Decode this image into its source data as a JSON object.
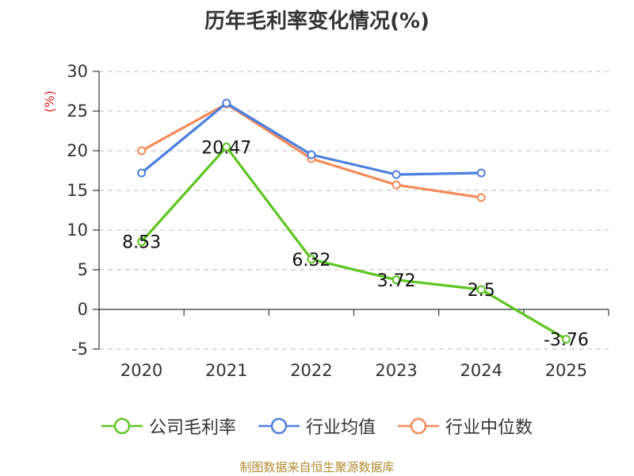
{
  "chart_data": {
    "type": "line",
    "title": "历年毛利率变化情况(%)",
    "ylabel": "(%)",
    "categories": [
      "2020",
      "2021",
      "2022",
      "2023",
      "2024",
      "2025"
    ],
    "ylim": [
      -5,
      30
    ],
    "yticks": [
      -5,
      0,
      5,
      10,
      15,
      20,
      25,
      30
    ],
    "grid": true,
    "legend_position": "bottom",
    "series": [
      {
        "name": "公司毛利率",
        "color": "#5cc61f",
        "values": [
          8.53,
          20.47,
          6.32,
          3.72,
          2.5,
          -3.76
        ],
        "labels": [
          "8.53",
          "20.47",
          "6.32",
          "3.72",
          "2.5",
          "-3.76"
        ]
      },
      {
        "name": "行业均值",
        "color": "#4b7fe0",
        "values": [
          17.2,
          26.0,
          19.5,
          17.0,
          17.2,
          null
        ]
      },
      {
        "name": "行业中位数",
        "color": "#f58a58",
        "values": [
          20.0,
          25.9,
          19.0,
          15.7,
          14.1,
          null
        ]
      }
    ],
    "source": "制图数据来自恒生聚源数据库"
  }
}
